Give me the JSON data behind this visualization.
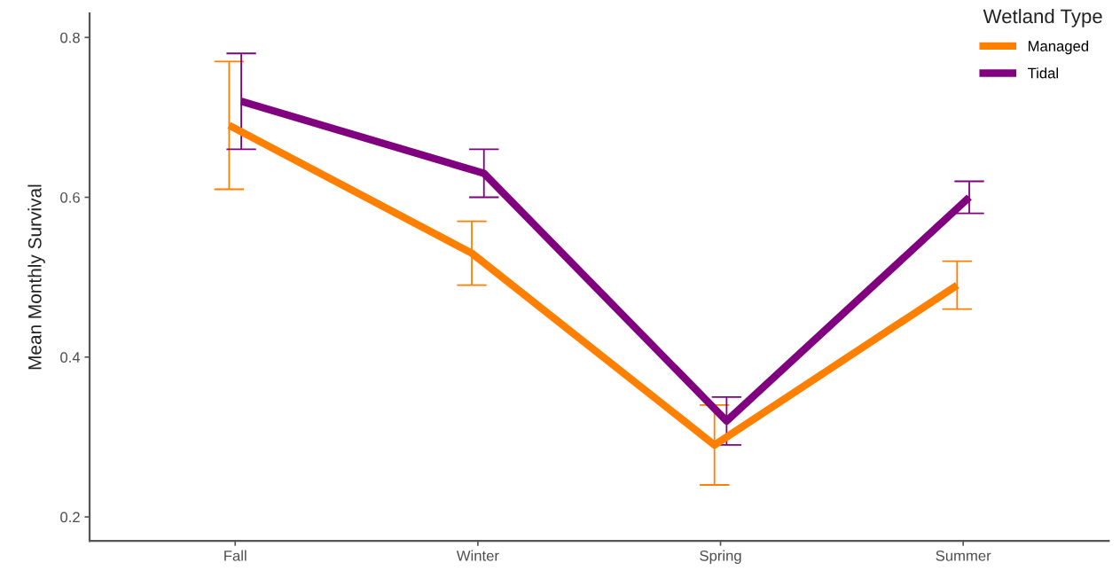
{
  "chart_data": {
    "type": "line",
    "ylabel": "Mean Monthly Survival",
    "legend_title": "Wetland Type",
    "categories": [
      "Fall",
      "Winter",
      "Spring",
      "Summer"
    ],
    "series": [
      {
        "name": "Managed",
        "color": "#ff8000",
        "values": [
          0.69,
          0.53,
          0.29,
          0.49
        ],
        "errors": [
          0.08,
          0.04,
          0.05,
          0.03
        ]
      },
      {
        "name": "Tidal",
        "color": "#800080",
        "values": [
          0.72,
          0.63,
          0.32,
          0.6
        ],
        "errors": [
          0.06,
          0.03,
          0.03,
          0.02
        ]
      }
    ],
    "ylim": [
      0.17,
      0.83
    ],
    "yticks": [
      0.2,
      0.4,
      0.6,
      0.8
    ],
    "legend": "top right",
    "line_style": "solid"
  }
}
